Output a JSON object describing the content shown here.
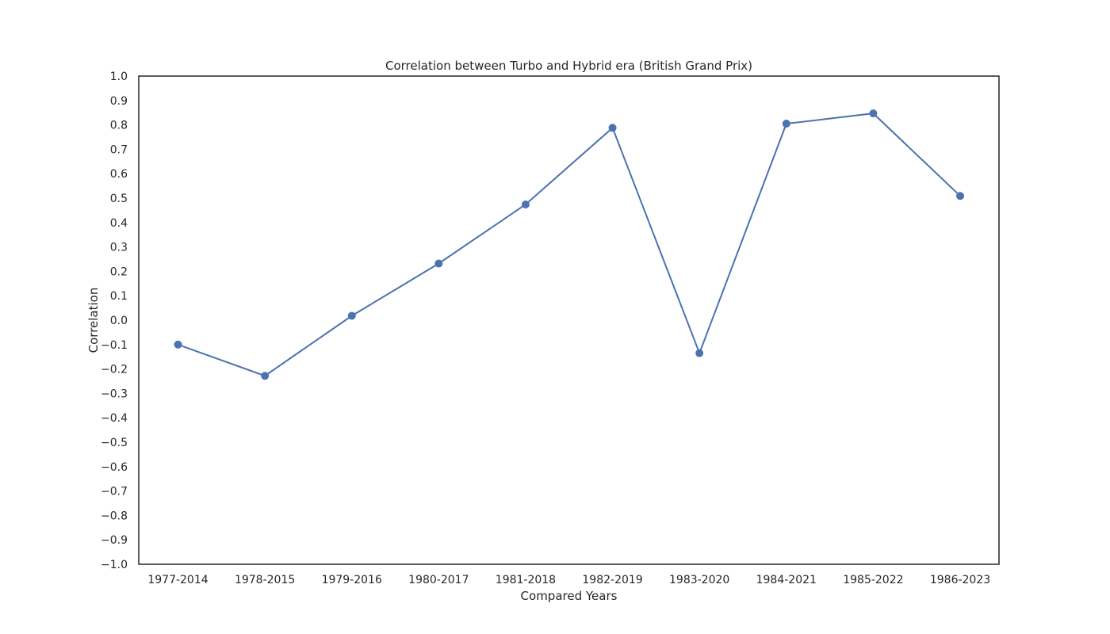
{
  "chart_data": {
    "type": "line",
    "title": "Correlation between Turbo and Hybrid era (British Grand Prix)",
    "xlabel": "Compared Years",
    "ylabel": "Correlation",
    "categories": [
      "1977-2014",
      "1978-2015",
      "1979-2016",
      "1980-2017",
      "1981-2018",
      "1982-2019",
      "1983-2020",
      "1984-2021",
      "1985-2022",
      "1986-2023"
    ],
    "series": [
      {
        "values": [
          -0.1,
          -0.228,
          0.018,
          0.232,
          0.474,
          0.788,
          -0.135,
          0.805,
          0.847,
          0.509
        ]
      }
    ],
    "ylim": [
      -1.0,
      1.0
    ],
    "yticks": [
      "-1.0",
      "-0.9",
      "-0.8",
      "-0.7",
      "-0.6",
      "-0.5",
      "-0.4",
      "-0.3",
      "-0.2",
      "-0.1",
      "0.0",
      "0.1",
      "0.2",
      "0.3",
      "0.4",
      "0.5",
      "0.6",
      "0.7",
      "0.8",
      "0.9",
      "1.0"
    ],
    "grid": false,
    "marker": "circle",
    "line_color": "#4c72b0"
  }
}
